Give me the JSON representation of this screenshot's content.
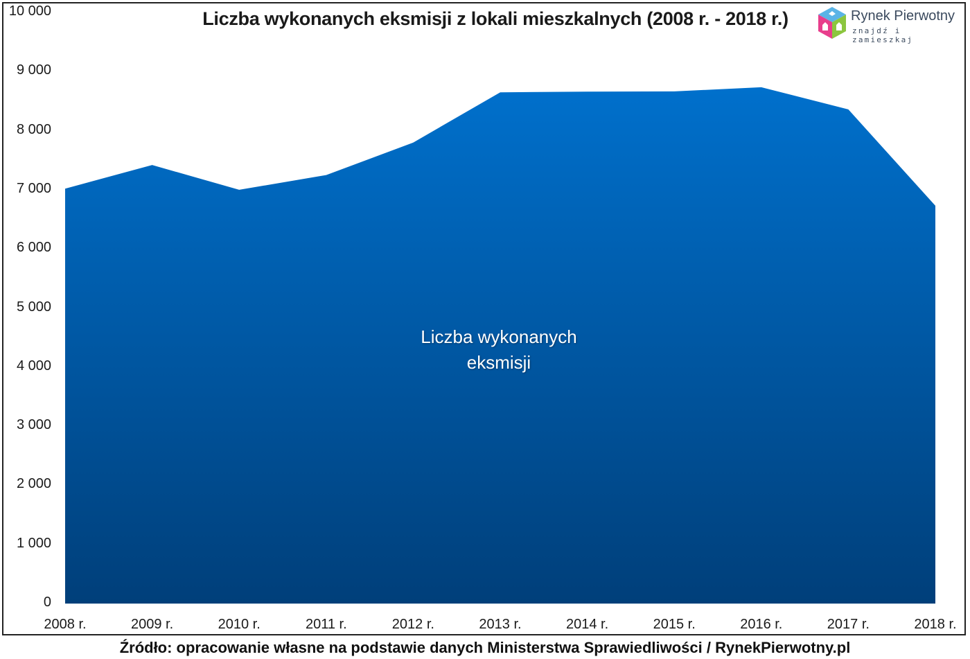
{
  "header": {
    "title": "Liczba wykonanych eksmisji z lokali mieszkalnych (2008 r. - 2018 r.)"
  },
  "logo": {
    "name": "Rynek Pierwotny",
    "tagline": "znajdź i zamieszkaj",
    "icon": "house-cube-icon",
    "colors": {
      "top": "#5ab4e6",
      "left": "#e83e8c",
      "right": "#8cc63f"
    }
  },
  "area_label": {
    "line1": "Liczba wykonanych",
    "line2": "eksmisji"
  },
  "footer": {
    "source": "Źródło: opracowanie własne na podstawie danych Ministerstwa Sprawiedliwości / RynekPierwotny.pl"
  },
  "y_axis": {
    "ticks": [
      "10 000",
      "9 000",
      "8 000",
      "7 000",
      "6 000",
      "5 000",
      "4 000",
      "3 000",
      "2 000",
      "1 000",
      "0"
    ]
  },
  "x_axis": {
    "ticks": [
      "2008 r.",
      "2009 r.",
      "2010 r.",
      "2011 r.",
      "2012 r.",
      "2013 r.",
      "2014 r.",
      "2015 r.",
      "2016 r.",
      "2017 r.",
      "2018 r."
    ]
  },
  "colors": {
    "area_top": "#0070cc",
    "area_bottom": "#003f7a",
    "text": "#1a1a1a"
  },
  "chart_data": {
    "type": "area",
    "title": "Liczba wykonanych eksmisji z lokali mieszkalnych (2008 r. - 2018 r.)",
    "xlabel": "",
    "ylabel": "",
    "categories": [
      "2008 r.",
      "2009 r.",
      "2010 r.",
      "2011 r.",
      "2012 r.",
      "2013 r.",
      "2014 r.",
      "2015 r.",
      "2016 r.",
      "2017 r.",
      "2018 r."
    ],
    "series": [
      {
        "name": "Liczba wykonanych eksmisji",
        "values": [
          7020,
          7420,
          7000,
          7250,
          7800,
          8650,
          8660,
          8665,
          8735,
          8360,
          6730
        ]
      }
    ],
    "ylim": [
      0,
      10000
    ],
    "yticks": [
      0,
      1000,
      2000,
      3000,
      4000,
      5000,
      6000,
      7000,
      8000,
      9000,
      10000
    ],
    "grid": false,
    "legend": "none (label placed inside area)",
    "source": "Źródło: opracowanie własne na podstawie danych Ministerstwa Sprawiedliwości / RynekPierwotny.pl"
  }
}
